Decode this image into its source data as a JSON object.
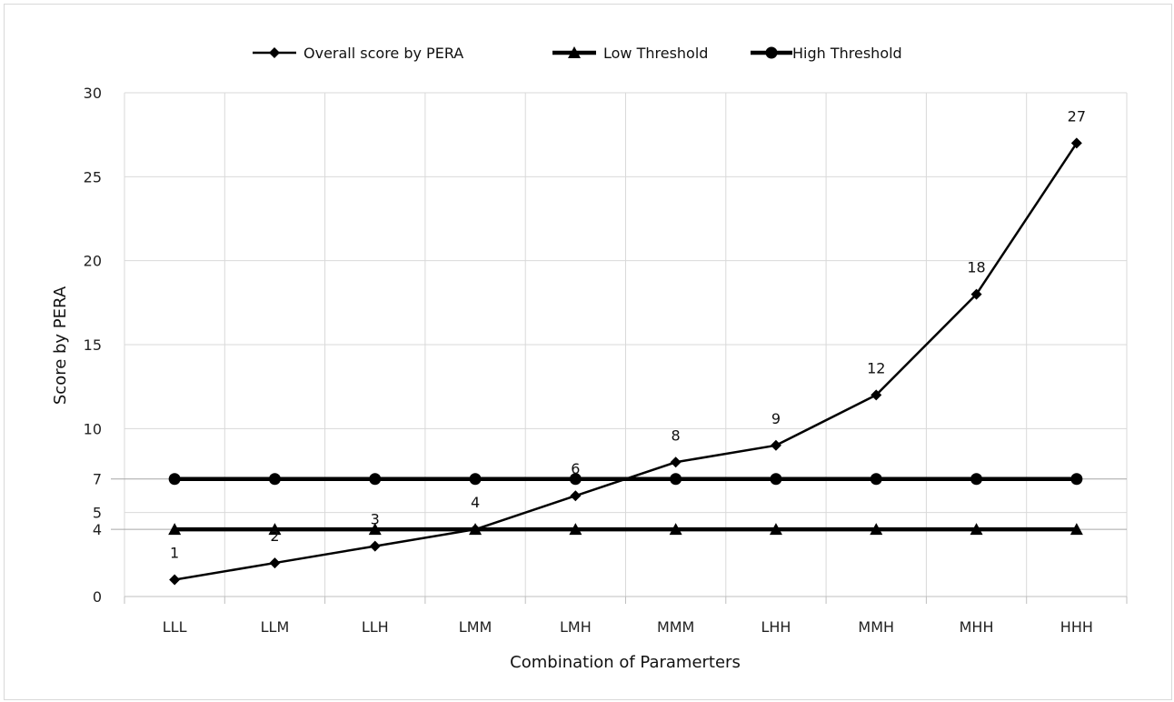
{
  "chart_data": {
    "type": "line",
    "title": "",
    "xlabel": "Combination of Paramerters",
    "ylabel": "Score by PERA",
    "categories": [
      "LLL",
      "LLM",
      "LLH",
      "LMM",
      "LMH",
      "MMM",
      "LHH",
      "MMH",
      "MHH",
      "HHH"
    ],
    "yticks": [
      0,
      4,
      5,
      7,
      10,
      15,
      20,
      25,
      30
    ],
    "ylim": [
      0,
      30
    ],
    "grid": "vertical and horizontal",
    "legend_position": "top",
    "series": [
      {
        "name": "Overall score by PERA",
        "marker": "diamond",
        "values": [
          1,
          2,
          3,
          4,
          6,
          8,
          9,
          12,
          18,
          27
        ],
        "labels": [
          "1",
          "2",
          "3",
          "4",
          "6",
          "8",
          "9",
          "12",
          "18",
          "27"
        ]
      },
      {
        "name": "Low Threshold",
        "marker": "triangle",
        "values": [
          4,
          4,
          4,
          4,
          4,
          4,
          4,
          4,
          4,
          4
        ]
      },
      {
        "name": "High Threshold",
        "marker": "circle",
        "values": [
          7,
          7,
          7,
          7,
          7,
          7,
          7,
          7,
          7,
          7
        ]
      }
    ],
    "colors": {
      "line": "#000000",
      "grid": "#d9d9d9",
      "axis": "#bfbfbf"
    }
  }
}
